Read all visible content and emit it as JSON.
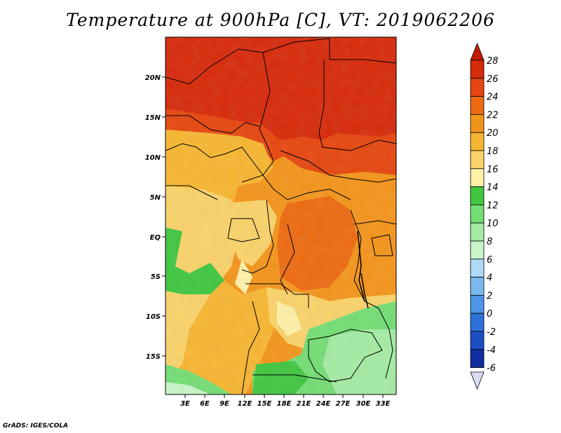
{
  "title": "Temperature at 900hPa [C], VT: 2019062206",
  "credit": "GrADS: IGES/COLA",
  "map": {
    "lon_range": [
      0,
      35
    ],
    "lat_range": [
      -20,
      25
    ],
    "lon_ticks": [
      "3E",
      "6E",
      "9E",
      "12E",
      "15E",
      "18E",
      "21E",
      "24E",
      "27E",
      "30E",
      "33E"
    ],
    "lat_ticks": [
      "20N",
      "15N",
      "10N",
      "5N",
      "EQ",
      "5S",
      "10S",
      "15S"
    ]
  },
  "colorbar": {
    "labels": [
      "28",
      "26",
      "24",
      "22",
      "20",
      "18",
      "16",
      "14",
      "12",
      "10",
      "8",
      "6",
      "4",
      "2",
      "0",
      "-2",
      "-4",
      "-6"
    ],
    "colors": [
      "#d72a0a",
      "#e6460f",
      "#ed6a11",
      "#f3941a",
      "#f7b631",
      "#fad269",
      "#fdf0a8",
      "#40c640",
      "#74dd74",
      "#a4eba4",
      "#c9f5c9",
      "#b0d9f8",
      "#7ab8ee",
      "#4d95e6",
      "#2d72d9",
      "#1a4fc4",
      "#0f2d9e",
      "#08116b"
    ],
    "top_arrow": "#c21a06",
    "bottom_arrow": "#dcdcf5"
  }
}
